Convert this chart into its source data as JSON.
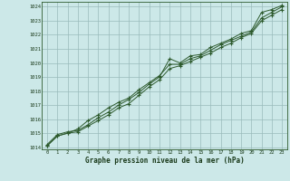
{
  "xlabel": "Graphe pression niveau de la mer (hPa)",
  "bg_color": "#cce8e8",
  "grid_color": "#99bbbb",
  "line_color": "#2d5a2d",
  "hours": [
    0,
    1,
    2,
    3,
    4,
    5,
    6,
    7,
    8,
    9,
    10,
    11,
    12,
    13,
    14,
    15,
    16,
    17,
    18,
    19,
    20,
    21,
    22,
    23
  ],
  "line1": [
    1014.2,
    1014.9,
    1015.1,
    1015.2,
    1015.6,
    1016.1,
    1016.5,
    1017.0,
    1017.4,
    1017.9,
    1018.5,
    1019.0,
    1020.3,
    1020.0,
    1020.5,
    1020.6,
    1021.1,
    1021.4,
    1021.7,
    1022.1,
    1022.3,
    1023.6,
    1023.8,
    1024.1
  ],
  "line2": [
    1014.1,
    1014.8,
    1015.0,
    1015.1,
    1015.5,
    1015.9,
    1016.3,
    1016.8,
    1017.1,
    1017.7,
    1018.3,
    1018.8,
    1019.6,
    1019.8,
    1020.1,
    1020.4,
    1020.7,
    1021.1,
    1021.4,
    1021.8,
    1022.1,
    1023.0,
    1023.4,
    1023.8
  ],
  "line3": [
    1014.1,
    1014.8,
    1015.0,
    1015.3,
    1015.9,
    1016.3,
    1016.8,
    1017.2,
    1017.5,
    1018.1,
    1018.6,
    1019.1,
    1019.9,
    1019.9,
    1020.3,
    1020.5,
    1020.9,
    1021.3,
    1021.6,
    1021.9,
    1022.2,
    1023.2,
    1023.6,
    1024.0
  ],
  "ylim": [
    1014,
    1024
  ],
  "yticks": [
    1014,
    1015,
    1016,
    1017,
    1018,
    1019,
    1020,
    1021,
    1022,
    1023,
    1024
  ],
  "xlim": [
    0,
    23
  ],
  "xticks": [
    0,
    1,
    2,
    3,
    4,
    5,
    6,
    7,
    8,
    9,
    10,
    11,
    12,
    13,
    14,
    15,
    16,
    17,
    18,
    19,
    20,
    21,
    22,
    23
  ]
}
